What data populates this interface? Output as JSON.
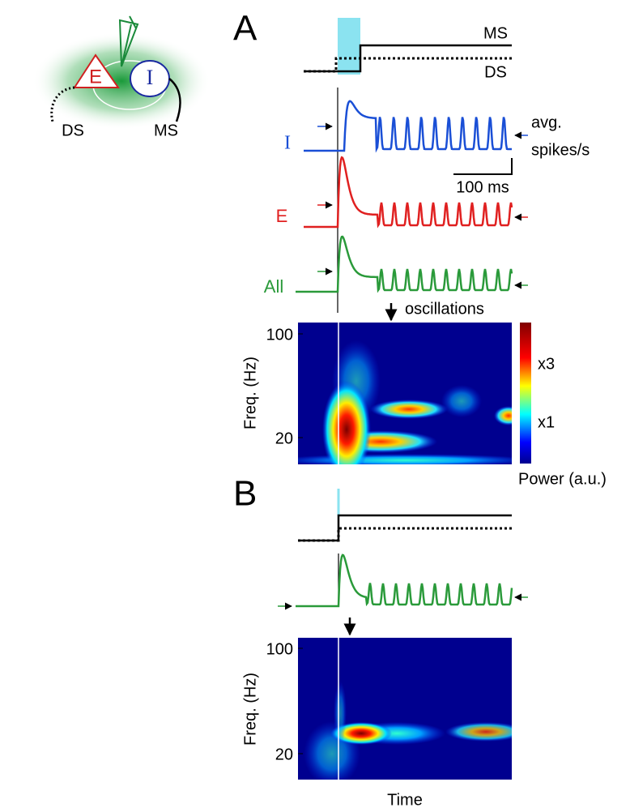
{
  "figure": {
    "inset": {
      "excitatory": "E",
      "inhibitory": "I",
      "ds": "DS",
      "ms": "MS"
    },
    "panel_a": {
      "label": "A",
      "ms": "MS",
      "ds": "DS",
      "trace_i": "I",
      "trace_e": "E",
      "trace_all": "All",
      "rate_label": [
        "avg.",
        "spikes/s"
      ],
      "scale_bar": "100 ms",
      "annotation": "oscillations",
      "spectrogram": {
        "y_label": "Freq. (Hz)",
        "yticks": [
          100,
          20
        ],
        "colorbar_ticks": [
          "x3",
          "x1"
        ],
        "colorbar_label": "Power (a.u.)"
      }
    },
    "panel_b": {
      "label": "B",
      "spectrogram": {
        "y_label": "Freq. (Hz)",
        "yticks": [
          100,
          20
        ]
      },
      "x_label": "Time"
    }
  }
}
